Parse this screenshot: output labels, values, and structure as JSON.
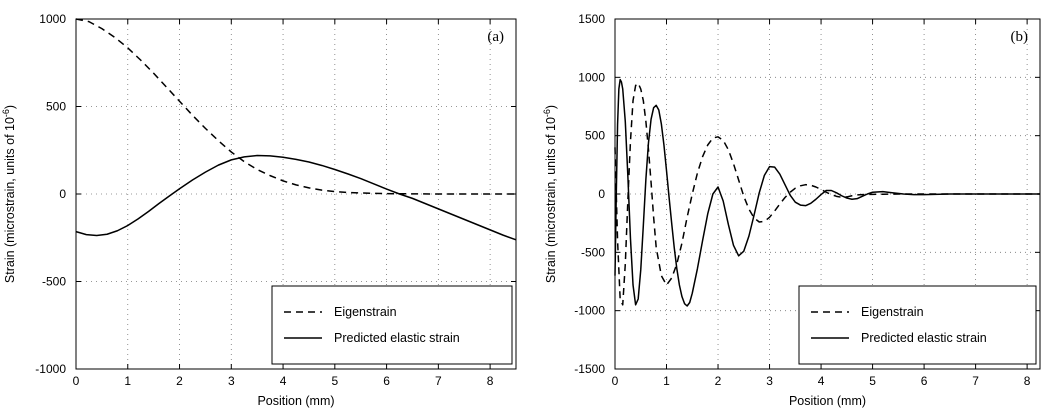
{
  "chart_data": [
    {
      "type": "line",
      "panel_label": "(a)",
      "xlabel": "Position (mm)",
      "ylabel": "Strain (microstrain, units of 10",
      "ylabel_sup": "-6",
      "ylabel_end": ")",
      "xlim": [
        0,
        8.5
      ],
      "ylim": [
        -1000,
        1000
      ],
      "xticks": [
        0,
        1,
        2,
        3,
        4,
        5,
        6,
        7,
        8
      ],
      "yticks": [
        -1000,
        -500,
        0,
        500,
        1000
      ],
      "grid": true,
      "legend_position": "bottom-right",
      "series": [
        {
          "name": "Eigenstrain",
          "style": "dashed",
          "x": [
            0,
            0.25,
            0.5,
            0.75,
            1,
            1.25,
            1.5,
            1.75,
            2,
            2.25,
            2.5,
            2.75,
            3,
            3.25,
            3.5,
            3.75,
            4,
            4.25,
            4.5,
            4.75,
            5,
            5.25,
            5.5,
            5.75,
            6,
            6.5,
            7,
            7.5,
            8,
            8.5
          ],
          "y": [
            1000,
            985,
            945,
            895,
            835,
            765,
            690,
            610,
            530,
            450,
            375,
            305,
            240,
            185,
            140,
            105,
            75,
            52,
            35,
            22,
            14,
            9,
            6,
            4,
            2,
            1,
            0,
            0,
            0,
            0
          ]
        },
        {
          "name": "Predicted elastic strain",
          "style": "solid",
          "x": [
            0,
            0.2,
            0.4,
            0.6,
            0.8,
            1,
            1.2,
            1.4,
            1.6,
            1.8,
            2,
            2.25,
            2.5,
            2.75,
            3,
            3.25,
            3.5,
            3.75,
            4,
            4.25,
            4.5,
            4.75,
            5,
            5.25,
            5.5,
            5.75,
            6,
            6.25,
            6.5,
            6.75,
            7,
            7.25,
            7.5,
            7.75,
            8,
            8.25,
            8.5
          ],
          "y": [
            -215,
            -232,
            -237,
            -230,
            -210,
            -180,
            -142,
            -100,
            -55,
            -12,
            30,
            80,
            125,
            165,
            195,
            212,
            220,
            218,
            210,
            198,
            183,
            163,
            140,
            115,
            88,
            58,
            28,
            0,
            -25,
            -55,
            -85,
            -115,
            -145,
            -175,
            -205,
            -235,
            -262
          ]
        }
      ]
    },
    {
      "type": "line",
      "panel_label": "(b)",
      "xlabel": "Position (mm)",
      "ylabel": "Strain (microstrain, units of 10",
      "ylabel_sup": "-6",
      "ylabel_end": ")",
      "xlim": [
        0,
        8.25
      ],
      "ylim": [
        -1500,
        1500
      ],
      "xticks": [
        0,
        1,
        2,
        3,
        4,
        5,
        6,
        7,
        8
      ],
      "yticks": [
        -1500,
        -1000,
        -500,
        0,
        500,
        1000,
        1500
      ],
      "grid": true,
      "legend_position": "bottom-right",
      "series": [
        {
          "name": "Eigenstrain",
          "style": "dashed",
          "x": [
            0,
            0.05,
            0.1,
            0.15,
            0.2,
            0.25,
            0.3,
            0.35,
            0.4,
            0.45,
            0.5,
            0.55,
            0.6,
            0.65,
            0.7,
            0.75,
            0.8,
            0.9,
            1.0,
            1.1,
            1.2,
            1.3,
            1.4,
            1.5,
            1.6,
            1.7,
            1.8,
            1.9,
            2.0,
            2.1,
            2.2,
            2.3,
            2.4,
            2.5,
            2.6,
            2.7,
            2.8,
            2.9,
            3.0,
            3.1,
            3.2,
            3.3,
            3.4,
            3.5,
            3.6,
            3.7,
            3.8,
            3.9,
            4.0,
            4.1,
            4.2,
            4.3,
            4.4,
            4.5,
            4.6,
            4.7,
            4.8,
            5.0,
            5.2,
            5.4,
            5.6,
            6.0,
            6.5,
            7.0,
            7.5,
            8.0,
            8.25
          ],
          "y": [
            400,
            -400,
            -900,
            -950,
            -600,
            -50,
            450,
            800,
            930,
            950,
            900,
            800,
            620,
            380,
            100,
            -200,
            -460,
            -700,
            -780,
            -720,
            -600,
            -420,
            -200,
            0,
            180,
            320,
            420,
            480,
            490,
            460,
            380,
            260,
            120,
            -20,
            -130,
            -205,
            -240,
            -235,
            -200,
            -145,
            -85,
            -30,
            15,
            50,
            70,
            80,
            75,
            60,
            40,
            15,
            -5,
            -20,
            -28,
            -25,
            -15,
            -8,
            -5,
            -3,
            -2,
            -1,
            0,
            0,
            0,
            0,
            0,
            0,
            0
          ]
        },
        {
          "name": "Predicted elastic strain",
          "style": "solid",
          "x": [
            0,
            0.025,
            0.05,
            0.075,
            0.1,
            0.125,
            0.15,
            0.2,
            0.25,
            0.3,
            0.35,
            0.4,
            0.45,
            0.5,
            0.55,
            0.6,
            0.65,
            0.7,
            0.75,
            0.8,
            0.85,
            0.9,
            0.95,
            1.0,
            1.05,
            1.1,
            1.15,
            1.2,
            1.25,
            1.3,
            1.35,
            1.4,
            1.45,
            1.5,
            1.6,
            1.7,
            1.8,
            1.9,
            2.0,
            2.1,
            2.2,
            2.3,
            2.4,
            2.5,
            2.6,
            2.7,
            2.8,
            2.9,
            3.0,
            3.1,
            3.2,
            3.3,
            3.4,
            3.5,
            3.6,
            3.7,
            3.8,
            3.9,
            4.0,
            4.1,
            4.2,
            4.3,
            4.4,
            4.5,
            4.6,
            4.7,
            4.8,
            4.9,
            5.0,
            5.2,
            5.4,
            5.6,
            5.8,
            6.0,
            6.5,
            7.0,
            7.5,
            8.0,
            8.25
          ],
          "y": [
            -700,
            0,
            600,
            900,
            980,
            960,
            900,
            620,
            150,
            -380,
            -780,
            -950,
            -900,
            -650,
            -270,
            130,
            440,
            640,
            740,
            760,
            720,
            600,
            420,
            200,
            -30,
            -250,
            -460,
            -640,
            -780,
            -880,
            -940,
            -960,
            -930,
            -850,
            -640,
            -400,
            -170,
            0,
            60,
            -60,
            -260,
            -440,
            -530,
            -490,
            -360,
            -180,
            10,
            160,
            235,
            230,
            170,
            80,
            -10,
            -70,
            -95,
            -100,
            -80,
            -45,
            -5,
            30,
            30,
            10,
            -15,
            -35,
            -45,
            -40,
            -20,
            0,
            15,
            20,
            10,
            0,
            -5,
            -5,
            0,
            0,
            0,
            0,
            0
          ]
        }
      ]
    }
  ]
}
